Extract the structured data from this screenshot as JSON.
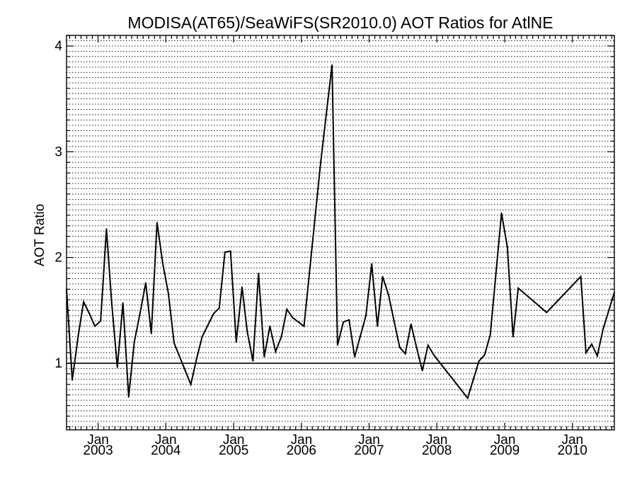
{
  "chart_data": {
    "type": "line",
    "title": "MODISA(AT65)/SeaWiFS(SR2010.0)  AOT Ratios for AtlNE",
    "xlabel": "",
    "ylabel": "AOT Ratio",
    "xlim": [
      "2002-07-15",
      "2010-08-15"
    ],
    "ylim": [
      0.37,
      4.1
    ],
    "yticks": [
      1,
      2,
      3,
      4
    ],
    "xticks": [
      {
        "date": "2003-01-01",
        "month": "Jan",
        "year": "2003"
      },
      {
        "date": "2004-01-01",
        "month": "Jan",
        "year": "2004"
      },
      {
        "date": "2005-01-01",
        "month": "Jan",
        "year": "2005"
      },
      {
        "date": "2006-01-01",
        "month": "Jan",
        "year": "2006"
      },
      {
        "date": "2007-01-01",
        "month": "Jan",
        "year": "2007"
      },
      {
        "date": "2008-01-01",
        "month": "Jan",
        "year": "2008"
      },
      {
        "date": "2009-01-01",
        "month": "Jan",
        "year": "2009"
      },
      {
        "date": "2010-01-01",
        "month": "Jan",
        "year": "2010"
      }
    ],
    "grid": true,
    "reference_line": 1,
    "series": [
      {
        "color": "#000000",
        "x": [
          "2002-07-15",
          "2002-08-15",
          "2002-09-15",
          "2002-10-15",
          "2002-11-15",
          "2002-12-15",
          "2003-01-15",
          "2003-02-15",
          "2003-03-15",
          "2003-04-15",
          "2003-05-15",
          "2003-06-15",
          "2003-07-15",
          "2003-08-15",
          "2003-09-15",
          "2003-10-15",
          "2003-11-15",
          "2003-12-15",
          "2004-01-15",
          "2004-02-15",
          "2004-05-15",
          "2004-06-15",
          "2004-07-15",
          "2004-09-15",
          "2004-10-15",
          "2004-11-15",
          "2004-12-15",
          "2005-01-15",
          "2005-02-15",
          "2005-03-15",
          "2005-04-15",
          "2005-05-15",
          "2005-06-15",
          "2005-07-15",
          "2005-08-15",
          "2005-09-15",
          "2005-10-15",
          "2005-11-15",
          "2006-01-15",
          "2006-04-15",
          "2006-06-15",
          "2006-07-15",
          "2006-08-15",
          "2006-09-15",
          "2006-10-15",
          "2006-11-15",
          "2006-12-15",
          "2007-01-15",
          "2007-02-15",
          "2007-03-15",
          "2007-04-15",
          "2007-06-15",
          "2007-07-15",
          "2007-08-15",
          "2007-09-15",
          "2007-10-15",
          "2007-11-15",
          "2007-12-15",
          "2008-06-15",
          "2008-08-15",
          "2008-09-15",
          "2008-10-15",
          "2008-12-15",
          "2009-01-15",
          "2009-02-15",
          "2009-03-15",
          "2009-08-15",
          "2010-02-15",
          "2010-03-15",
          "2010-04-15",
          "2010-05-15",
          "2010-06-15",
          "2010-08-15"
        ],
        "y": [
          1.7,
          0.84,
          1.25,
          1.58,
          1.47,
          1.35,
          1.4,
          2.27,
          1.58,
          0.96,
          1.57,
          0.68,
          1.2,
          1.47,
          1.76,
          1.28,
          2.33,
          1.95,
          1.66,
          1.19,
          0.8,
          1.04,
          1.25,
          1.47,
          1.52,
          2.05,
          2.06,
          1.2,
          1.72,
          1.3,
          1.02,
          1.85,
          1.06,
          1.35,
          1.11,
          1.25,
          1.51,
          1.43,
          1.35,
          2.9,
          3.82,
          1.17,
          1.39,
          1.41,
          1.06,
          1.26,
          1.45,
          1.94,
          1.35,
          1.82,
          1.65,
          1.15,
          1.09,
          1.37,
          1.14,
          0.93,
          1.17,
          1.08,
          0.67,
          1.02,
          1.08,
          1.27,
          2.42,
          2.1,
          1.25,
          1.71,
          1.48,
          1.82,
          1.1,
          1.18,
          1.07,
          1.32,
          1.67
        ]
      }
    ]
  }
}
